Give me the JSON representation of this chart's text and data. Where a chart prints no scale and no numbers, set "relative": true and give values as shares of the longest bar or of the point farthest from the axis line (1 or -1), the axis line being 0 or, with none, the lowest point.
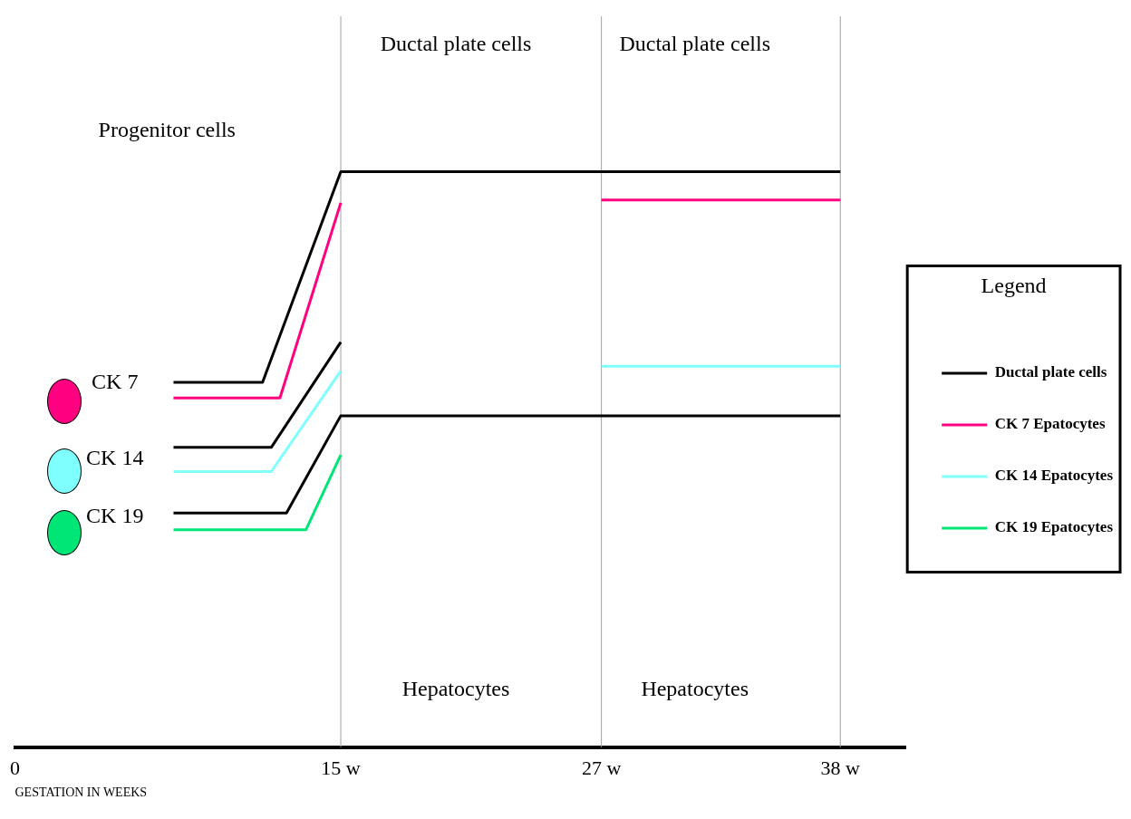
{
  "chart_data": {
    "type": "line",
    "relative": true,
    "xlabel": "GESTATION IN WEEKS",
    "legend_title": "Legend",
    "legend": "right",
    "xlim": [
      0,
      41
    ],
    "xticks": [
      0,
      {
        "value": 15,
        "label": "15 w"
      },
      {
        "value": 27,
        "label": "27 w"
      },
      {
        "value": 38,
        "label": "38 w"
      }
    ],
    "grid": false,
    "marker": "none",
    "line_style": "solid",
    "series": [
      {
        "name": "Ductal plate cells",
        "color": "#000000",
        "x": [
          7.3,
          11.4,
          15,
          38
        ],
        "values": [
          0.634,
          0.634,
          1,
          1
        ]
      },
      {
        "name": "CK 7 Epatocytes",
        "color": "#ff0080",
        "x": [
          7.3,
          12.2,
          15,
          null,
          27,
          38
        ],
        "values": [
          0.607,
          0.607,
          0.946,
          null,
          0.951,
          0.951
        ]
      },
      {
        "color": "#000000",
        "x": [
          7.3,
          11.8,
          15
        ],
        "values": [
          0.521,
          0.521,
          0.704
        ]
      },
      {
        "name": "CK 14 Epatocytes",
        "color": "#80ffff",
        "x": [
          7.3,
          11.8,
          15,
          null,
          27,
          38
        ],
        "values": [
          0.479,
          0.479,
          0.654,
          null,
          0.662,
          0.662
        ]
      },
      {
        "color": "#000000",
        "x": [
          7.3,
          12.5,
          15,
          38
        ],
        "values": [
          0.407,
          0.407,
          0.576,
          0.576
        ]
      },
      {
        "name": "CK 19 Epatocytes",
        "color": "#00e676",
        "x": [
          7.3,
          13.4,
          15
        ],
        "values": [
          0.378,
          0.378,
          0.508
        ]
      }
    ],
    "ref_lines": [
      {
        "axis": "x",
        "value": 15,
        "color": "#a0a0a0"
      },
      {
        "axis": "x",
        "value": 27,
        "color": "#a0a0a0"
      },
      {
        "axis": "x",
        "value": 38,
        "color": "#a0a0a0"
      }
    ],
    "annotations": [
      "Progenitor cells",
      "Ductal plate cells",
      "Ductal plate cells",
      "Hepatocytes",
      "Hepatocytes",
      "CK 7",
      "CK 14",
      "CK 19"
    ]
  }
}
